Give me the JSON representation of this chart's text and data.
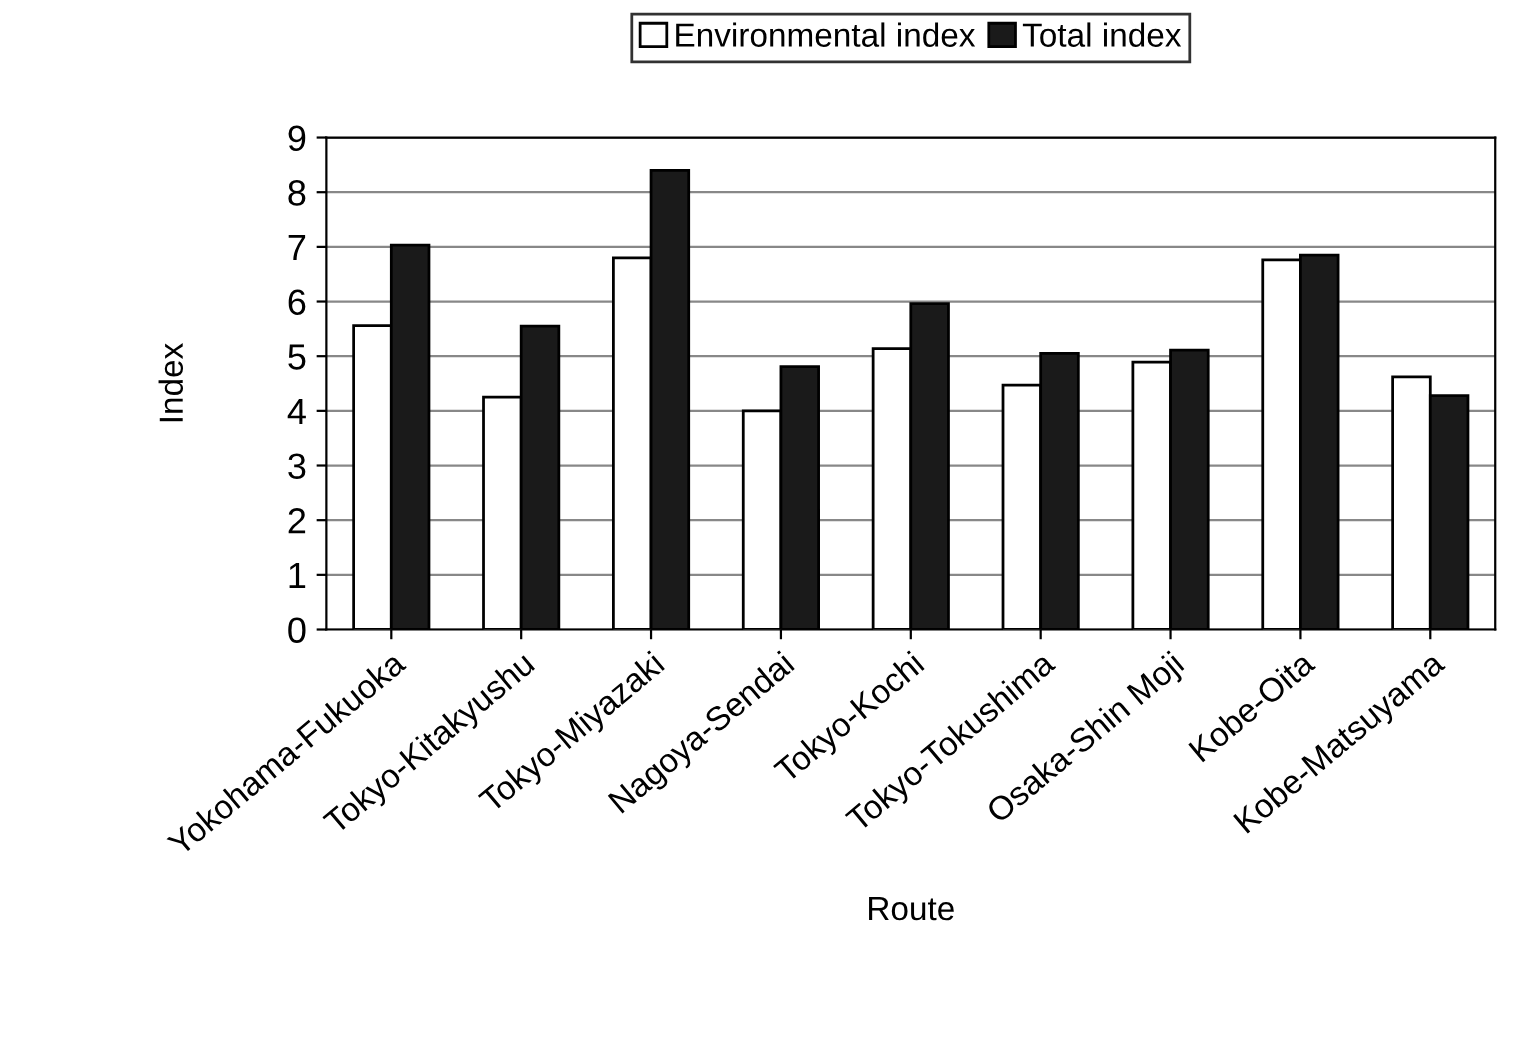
{
  "chart_data": {
    "type": "bar",
    "xlabel": "Route",
    "ylabel": "Index",
    "categories": [
      "Yokohama-Fukuoka",
      "Tokyo-Kitakyushu",
      "Tokyo-Miyazaki",
      "Nagoya-Sendai",
      "Tokyo-Kochi",
      "Tokyo-Tokushima",
      "Osaka-Shin Moji",
      "Kobe-Oita",
      "Kobe-Matsuyama"
    ],
    "series": [
      {
        "name": "Environmental index",
        "color": "#ffffff",
        "values": [
          5.56,
          4.25,
          6.8,
          4.0,
          5.14,
          4.47,
          4.89,
          6.76,
          4.62
        ]
      },
      {
        "name": "Total index",
        "color": "#1a1a1a",
        "values": [
          7.03,
          5.55,
          8.4,
          4.81,
          5.96,
          5.05,
          5.11,
          6.85,
          4.28
        ]
      }
    ],
    "ylim": [
      0,
      9
    ],
    "yticks": [
      0,
      1,
      2,
      3,
      4,
      5,
      6,
      7,
      8,
      9
    ],
    "grid": "y",
    "legend": "top"
  }
}
